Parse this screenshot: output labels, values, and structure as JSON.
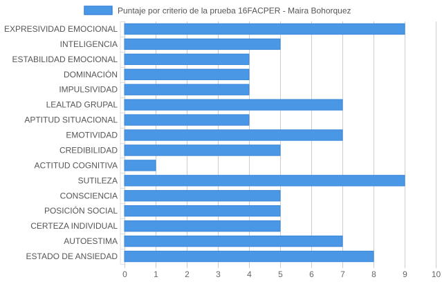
{
  "chart_data": {
    "type": "bar",
    "orientation": "horizontal",
    "categories": [
      "EXPRESIVIDAD EMOCIONAL",
      "INTELIGENCIA",
      "ESTABILIDAD EMOCIONAL",
      "DOMINACIÓN",
      "IMPULSIVIDAD",
      "LEALTAD GRUPAL",
      "APTITUD SITUACIONAL",
      "EMOTIVIDAD",
      "CREDIBILIDAD",
      "ACTITUD COGNITIVA",
      "SUTILEZA",
      "CONSCIENCIA",
      "POSICIÓN SOCIAL",
      "CERTEZA INDIVIDUAL",
      "AUTOESTIMA",
      "ESTADO DE ANSIEDAD"
    ],
    "series": [
      {
        "name": "Puntaje por criterio de la prueba 16FACPER - Maira Bohorquez",
        "values": [
          9,
          5,
          4,
          4,
          4,
          7,
          4,
          7,
          5,
          1,
          9,
          5,
          5,
          5,
          7,
          8
        ],
        "color": "#4a97e6",
        "border_color": "#3a86d9"
      }
    ],
    "xlim": [
      0,
      10
    ],
    "xticks": [
      "0",
      "1",
      "2",
      "3",
      "4",
      "5",
      "6",
      "7",
      "8",
      "9",
      "10"
    ],
    "grid": true,
    "grid_color": "#cccccc",
    "legend_position": "top"
  }
}
